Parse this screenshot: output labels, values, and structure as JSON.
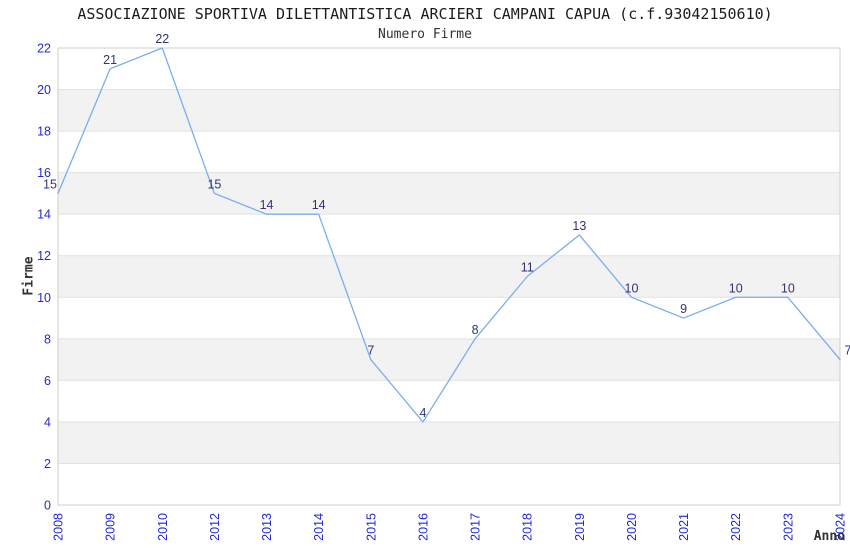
{
  "chart_data": {
    "type": "line",
    "title": "ASSOCIAZIONE SPORTIVA DILETTANTISTICA ARCIERI CAMPANI CAPUA (c.f.93042150610)",
    "subtitle": "Numero Firme",
    "xlabel": "Anno",
    "ylabel": "Firme",
    "categories": [
      "2008",
      "2009",
      "2010",
      "2012",
      "2013",
      "2014",
      "2015",
      "2016",
      "2017",
      "2018",
      "2019",
      "2020",
      "2021",
      "2022",
      "2023",
      "2024"
    ],
    "values": [
      15,
      21,
      22,
      15,
      14,
      14,
      7,
      4,
      8,
      11,
      13,
      10,
      9,
      10,
      10,
      7
    ],
    "point_labels_shown": true,
    "ylim": [
      0,
      22
    ],
    "yticks": [
      0,
      2,
      4,
      6,
      8,
      10,
      12,
      14,
      16,
      18,
      20,
      22
    ],
    "x_tick_rotation_degrees": -90,
    "grid": "horizontal gridlines with alternating shaded bands between even values",
    "shaded_bands": [
      [
        2,
        4
      ],
      [
        6,
        8
      ],
      [
        10,
        12
      ],
      [
        14,
        16
      ],
      [
        18,
        20
      ]
    ],
    "legend": "none"
  },
  "colors": {
    "background": "#ffffff",
    "line": "#7cacf0",
    "tick_label": "#2128d4",
    "point_label": "#333377",
    "band_fill": "#f2f2f2",
    "gridline": "#e2e2e2",
    "plot_border": "#cfcfcf",
    "title_text": "#1c1c1c",
    "subtitle_text": "#333333",
    "axis_title_text": "#333333"
  }
}
